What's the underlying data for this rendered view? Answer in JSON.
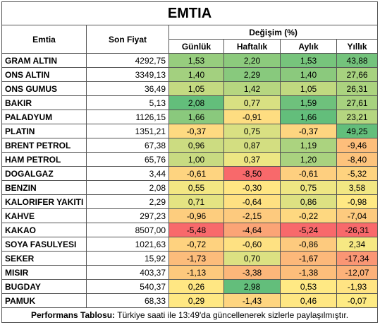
{
  "title": "EMTIA",
  "table": {
    "group_header": "Değişim (%)",
    "columns": [
      "Emtia",
      "Son Fiyat",
      "Günlük",
      "Haftalık",
      "Aylık",
      "Yıllık"
    ],
    "rows": [
      [
        "GRAM ALTIN",
        "4292,75",
        "1,53",
        "2,20",
        "1,53",
        "43,88"
      ],
      [
        "ONS ALTIN",
        "3349,13",
        "1,40",
        "2,29",
        "1,40",
        "27,66"
      ],
      [
        "ONS GUMUS",
        "36,49",
        "1,05",
        "1,42",
        "1,05",
        "26,31"
      ],
      [
        "BAKIR",
        "5,13",
        "2,08",
        "0,77",
        "1,59",
        "27,61"
      ],
      [
        "PALADYUM",
        "1126,15",
        "1,66",
        "-0,91",
        "1,66",
        "23,21"
      ],
      [
        "PLATIN",
        "1351,21",
        "-0,37",
        "0,75",
        "-0,37",
        "49,25"
      ],
      [
        "BRENT PETROL",
        "67,38",
        "0,96",
        "0,87",
        "1,19",
        "-9,46"
      ],
      [
        "HAM PETROL",
        "65,76",
        "1,00",
        "0,37",
        "1,20",
        "-8,40"
      ],
      [
        "DOGALGAZ",
        "3,44",
        "-0,61",
        "-8,50",
        "-0,61",
        "-5,32"
      ],
      [
        "BENZIN",
        "2,08",
        "0,55",
        "-0,30",
        "0,75",
        "3,58"
      ],
      [
        "KALORIFER YAKITI",
        "2,29",
        "0,71",
        "-0,64",
        "0,86",
        "-0,98"
      ],
      [
        "KAHVE",
        "297,23",
        "-0,96",
        "-2,15",
        "-0,22",
        "-7,04"
      ],
      [
        "KAKAO",
        "8507,00",
        "-5,48",
        "-4,64",
        "-5,24",
        "-26,31"
      ],
      [
        "SOYA FASULYESI",
        "1021,63",
        "-0,72",
        "-0,60",
        "-0,86",
        "2,34"
      ],
      [
        "SEKER",
        "15,92",
        "-1,73",
        "0,70",
        "-1,67",
        "-17,34"
      ],
      [
        "MISIR",
        "403,37",
        "-1,13",
        "-3,38",
        "-1,38",
        "-12,07"
      ],
      [
        "BUGDAY",
        "540,37",
        "0,26",
        "2,98",
        "0,53",
        "-1,93"
      ],
      [
        "PAMUK",
        "68,33",
        "0,29",
        "-1,43",
        "0,46",
        "-0,07"
      ]
    ]
  },
  "footer": {
    "label": "Performans Tablosu:",
    "text": "Türkiye saati ile 13:49'da güncellenerek sizlerle paylaşılmıştır."
  }
}
